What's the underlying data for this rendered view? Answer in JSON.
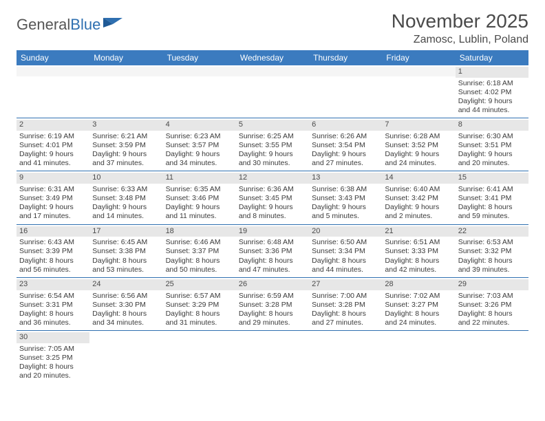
{
  "logo": {
    "general": "General",
    "blue": "Blue"
  },
  "title": "November 2025",
  "location": "Zamosc, Lublin, Poland",
  "weekdays": [
    "Sunday",
    "Monday",
    "Tuesday",
    "Wednesday",
    "Thursday",
    "Friday",
    "Saturday"
  ],
  "colors": {
    "header_bg": "#3b7bbf",
    "header_text": "#ffffff",
    "row_border": "#2e6fb0",
    "daynum_bg": "#e7e7e7",
    "text": "#3a3a3a",
    "title_color": "#4a4a4a",
    "logo_gray": "#555555",
    "logo_blue": "#2e6fb0",
    "page_bg": "#ffffff"
  },
  "typography": {
    "title_fontsize": 28,
    "location_fontsize": 16,
    "weekday_fontsize": 12,
    "daynum_fontsize": 11,
    "body_fontsize": 10.5,
    "logo_fontsize": 22
  },
  "weeks": [
    [
      {
        "empty": true
      },
      {
        "empty": true
      },
      {
        "empty": true
      },
      {
        "empty": true
      },
      {
        "empty": true
      },
      {
        "empty": true
      },
      {
        "num": "1",
        "sunrise": "Sunrise: 6:18 AM",
        "sunset": "Sunset: 4:02 PM",
        "daylight": "Daylight: 9 hours and 44 minutes."
      }
    ],
    [
      {
        "num": "2",
        "sunrise": "Sunrise: 6:19 AM",
        "sunset": "Sunset: 4:01 PM",
        "daylight": "Daylight: 9 hours and 41 minutes."
      },
      {
        "num": "3",
        "sunrise": "Sunrise: 6:21 AM",
        "sunset": "Sunset: 3:59 PM",
        "daylight": "Daylight: 9 hours and 37 minutes."
      },
      {
        "num": "4",
        "sunrise": "Sunrise: 6:23 AM",
        "sunset": "Sunset: 3:57 PM",
        "daylight": "Daylight: 9 hours and 34 minutes."
      },
      {
        "num": "5",
        "sunrise": "Sunrise: 6:25 AM",
        "sunset": "Sunset: 3:55 PM",
        "daylight": "Daylight: 9 hours and 30 minutes."
      },
      {
        "num": "6",
        "sunrise": "Sunrise: 6:26 AM",
        "sunset": "Sunset: 3:54 PM",
        "daylight": "Daylight: 9 hours and 27 minutes."
      },
      {
        "num": "7",
        "sunrise": "Sunrise: 6:28 AM",
        "sunset": "Sunset: 3:52 PM",
        "daylight": "Daylight: 9 hours and 24 minutes."
      },
      {
        "num": "8",
        "sunrise": "Sunrise: 6:30 AM",
        "sunset": "Sunset: 3:51 PM",
        "daylight": "Daylight: 9 hours and 20 minutes."
      }
    ],
    [
      {
        "num": "9",
        "sunrise": "Sunrise: 6:31 AM",
        "sunset": "Sunset: 3:49 PM",
        "daylight": "Daylight: 9 hours and 17 minutes."
      },
      {
        "num": "10",
        "sunrise": "Sunrise: 6:33 AM",
        "sunset": "Sunset: 3:48 PM",
        "daylight": "Daylight: 9 hours and 14 minutes."
      },
      {
        "num": "11",
        "sunrise": "Sunrise: 6:35 AM",
        "sunset": "Sunset: 3:46 PM",
        "daylight": "Daylight: 9 hours and 11 minutes."
      },
      {
        "num": "12",
        "sunrise": "Sunrise: 6:36 AM",
        "sunset": "Sunset: 3:45 PM",
        "daylight": "Daylight: 9 hours and 8 minutes."
      },
      {
        "num": "13",
        "sunrise": "Sunrise: 6:38 AM",
        "sunset": "Sunset: 3:43 PM",
        "daylight": "Daylight: 9 hours and 5 minutes."
      },
      {
        "num": "14",
        "sunrise": "Sunrise: 6:40 AM",
        "sunset": "Sunset: 3:42 PM",
        "daylight": "Daylight: 9 hours and 2 minutes."
      },
      {
        "num": "15",
        "sunrise": "Sunrise: 6:41 AM",
        "sunset": "Sunset: 3:41 PM",
        "daylight": "Daylight: 8 hours and 59 minutes."
      }
    ],
    [
      {
        "num": "16",
        "sunrise": "Sunrise: 6:43 AM",
        "sunset": "Sunset: 3:39 PM",
        "daylight": "Daylight: 8 hours and 56 minutes."
      },
      {
        "num": "17",
        "sunrise": "Sunrise: 6:45 AM",
        "sunset": "Sunset: 3:38 PM",
        "daylight": "Daylight: 8 hours and 53 minutes."
      },
      {
        "num": "18",
        "sunrise": "Sunrise: 6:46 AM",
        "sunset": "Sunset: 3:37 PM",
        "daylight": "Daylight: 8 hours and 50 minutes."
      },
      {
        "num": "19",
        "sunrise": "Sunrise: 6:48 AM",
        "sunset": "Sunset: 3:36 PM",
        "daylight": "Daylight: 8 hours and 47 minutes."
      },
      {
        "num": "20",
        "sunrise": "Sunrise: 6:50 AM",
        "sunset": "Sunset: 3:34 PM",
        "daylight": "Daylight: 8 hours and 44 minutes."
      },
      {
        "num": "21",
        "sunrise": "Sunrise: 6:51 AM",
        "sunset": "Sunset: 3:33 PM",
        "daylight": "Daylight: 8 hours and 42 minutes."
      },
      {
        "num": "22",
        "sunrise": "Sunrise: 6:53 AM",
        "sunset": "Sunset: 3:32 PM",
        "daylight": "Daylight: 8 hours and 39 minutes."
      }
    ],
    [
      {
        "num": "23",
        "sunrise": "Sunrise: 6:54 AM",
        "sunset": "Sunset: 3:31 PM",
        "daylight": "Daylight: 8 hours and 36 minutes."
      },
      {
        "num": "24",
        "sunrise": "Sunrise: 6:56 AM",
        "sunset": "Sunset: 3:30 PM",
        "daylight": "Daylight: 8 hours and 34 minutes."
      },
      {
        "num": "25",
        "sunrise": "Sunrise: 6:57 AM",
        "sunset": "Sunset: 3:29 PM",
        "daylight": "Daylight: 8 hours and 31 minutes."
      },
      {
        "num": "26",
        "sunrise": "Sunrise: 6:59 AM",
        "sunset": "Sunset: 3:28 PM",
        "daylight": "Daylight: 8 hours and 29 minutes."
      },
      {
        "num": "27",
        "sunrise": "Sunrise: 7:00 AM",
        "sunset": "Sunset: 3:28 PM",
        "daylight": "Daylight: 8 hours and 27 minutes."
      },
      {
        "num": "28",
        "sunrise": "Sunrise: 7:02 AM",
        "sunset": "Sunset: 3:27 PM",
        "daylight": "Daylight: 8 hours and 24 minutes."
      },
      {
        "num": "29",
        "sunrise": "Sunrise: 7:03 AM",
        "sunset": "Sunset: 3:26 PM",
        "daylight": "Daylight: 8 hours and 22 minutes."
      }
    ],
    [
      {
        "num": "30",
        "sunrise": "Sunrise: 7:05 AM",
        "sunset": "Sunset: 3:25 PM",
        "daylight": "Daylight: 8 hours and 20 minutes."
      },
      {
        "empty": true
      },
      {
        "empty": true
      },
      {
        "empty": true
      },
      {
        "empty": true
      },
      {
        "empty": true
      },
      {
        "empty": true
      }
    ]
  ]
}
